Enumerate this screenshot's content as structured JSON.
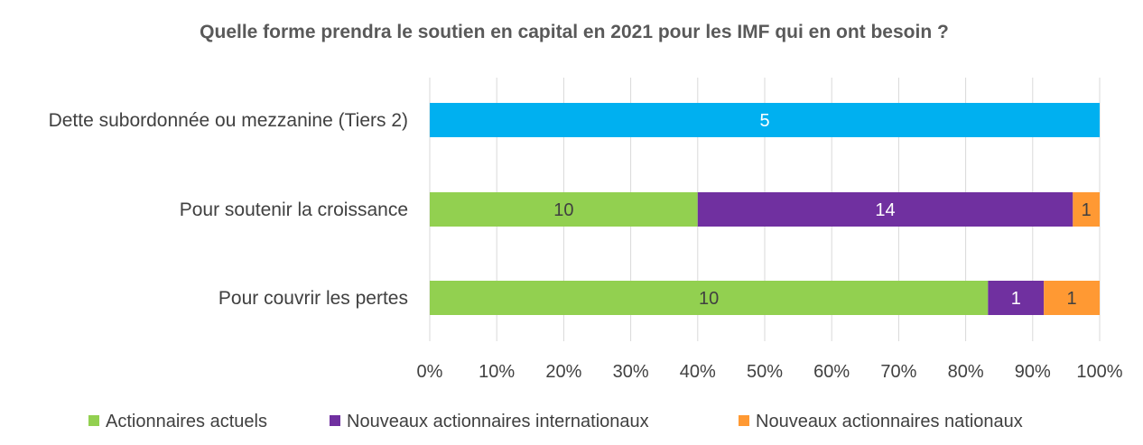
{
  "chart_data": {
    "type": "bar",
    "orientation": "horizontal",
    "stacked": "percent",
    "title": "Quelle forme prendra le soutien en capital en 2021 pour les IMF qui en ont besoin ?",
    "categories": [
      "Dette subordonnée ou mezzanine (Tiers 2)",
      "Pour soutenir la croissance",
      "Pour couvrir les pertes"
    ],
    "series": [
      {
        "name": "",
        "color": "#00B0F0",
        "label_color": "#FFFFFF",
        "values": [
          5,
          0,
          0
        ]
      },
      {
        "name": "Actionnaires actuels",
        "color": "#92D050",
        "label_color": "#404040",
        "values": [
          0,
          10,
          10
        ]
      },
      {
        "name": "Nouveaux actionnaires internationaux",
        "color": "#7030A0",
        "label_color": "#FFFFFF",
        "values": [
          0,
          14,
          1
        ]
      },
      {
        "name": "Nouveaux actionnaires nationaux",
        "color": "#FF9933",
        "label_color": "#404040",
        "values": [
          0,
          1,
          1
        ]
      }
    ],
    "xlim": [
      0,
      100
    ],
    "xticks": [
      "0%",
      "10%",
      "20%",
      "30%",
      "40%",
      "50%",
      "60%",
      "70%",
      "80%",
      "90%",
      "100%"
    ],
    "grid": true,
    "legend_position": "bottom"
  }
}
